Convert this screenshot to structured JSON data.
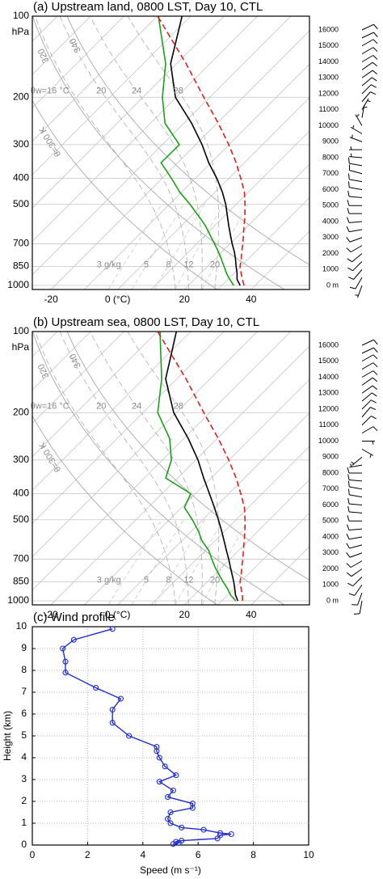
{
  "chart_data": [
    {
      "type": "skewt",
      "title": "(a) Upstream land, 0800 LST, Day 10, CTL",
      "ylabel": "hPa",
      "ylim": [
        1035,
        100
      ],
      "yticks": [
        100,
        200,
        300,
        400,
        500,
        700,
        850,
        1000
      ],
      "xlim": [
        -25.6,
        57.5
      ],
      "xticks": [
        -20,
        {
          "value": 0,
          "label": "0 (°C)"
        },
        20,
        40
      ],
      "pressure": [
        1000,
        950,
        900,
        850,
        800,
        750,
        700,
        650,
        600,
        550,
        500,
        450,
        400,
        350,
        300,
        250,
        200,
        150,
        100
      ],
      "series": [
        {
          "color": "#000000",
          "dashed": false,
          "values": [
            35.5,
            32.8,
            30.9,
            28.6,
            26.3,
            23.7,
            20.6,
            17.5,
            14.2,
            10.7,
            6.9,
            2.2,
            -3.6,
            -10.7,
            -18.1,
            -27.6,
            -40.3,
            -51.8,
            -62.6
          ]
        },
        {
          "color": "#1aa01a",
          "dashed": false,
          "values": [
            33.6,
            30.6,
            27.7,
            25.0,
            22.1,
            18.9,
            15.3,
            11.4,
            7.2,
            2.0,
            -3.8,
            -10.6,
            -17.2,
            -25.0,
            -24.9,
            -35.6,
            -44.2,
            -53.3,
            -69.7
          ]
        },
        {
          "color": "#e02020",
          "dashed": true,
          "values": [
            36.7,
            34.4,
            32.1,
            29.8,
            28.0,
            25.9,
            23.8,
            21.4,
            18.8,
            16.0,
            12.7,
            8.8,
            3.6,
            -2.5,
            -10.1,
            -19.6,
            -31.8,
            -47.2,
            -69.9
          ]
        }
      ],
      "dry_adiabats": [
        {
          "value": 300,
          "label": "θ=300 K"
        },
        320,
        340
      ],
      "moist_adiabats": [
        {
          "value": 16,
          "label": "θw=16 °C"
        },
        20,
        24,
        28
      ],
      "mixing_ratios": [
        {
          "value": 3,
          "label": "3 g/kg"
        },
        5,
        8,
        12,
        20
      ],
      "wind": {
        "ylim": [
          0,
          16000
        ],
        "yticks": [
          {
            "value": 0,
            "label": "0 m"
          },
          1000,
          2000,
          3000,
          4000,
          5000,
          6000,
          7000,
          8000,
          9000,
          10000,
          11000,
          12000,
          13000,
          14000,
          15000,
          16000
        ],
        "heights": [
          0,
          500,
          1000,
          1500,
          2000,
          2500,
          3000,
          3500,
          4000,
          4500,
          5000,
          5500,
          6000,
          6500,
          7000,
          7500,
          8000,
          8500,
          9000,
          9500,
          10000,
          10500,
          11000,
          11500,
          12000,
          12500,
          13000,
          13500,
          14000,
          14500,
          15000,
          15500,
          16000
        ],
        "speed": [
          5,
          10,
          10,
          10,
          10,
          10,
          10,
          10,
          10,
          10,
          10,
          10,
          10,
          10,
          10,
          10,
          5,
          5,
          5,
          5,
          5,
          5,
          5,
          10,
          10,
          10,
          10,
          10,
          10,
          10,
          10,
          10,
          10
        ],
        "direction": [
          200,
          210,
          220,
          225,
          230,
          240,
          250,
          260,
          265,
          270,
          270,
          275,
          280,
          280,
          285,
          280,
          275,
          270,
          290,
          300,
          330,
          10,
          30,
          40,
          45,
          50,
          55,
          55,
          60,
          60,
          60,
          65,
          65
        ]
      }
    },
    {
      "type": "skewt",
      "title": "(b) Upstream sea, 0800 LST, Day 10, CTL",
      "ylabel": "hPa",
      "ylim": [
        1035,
        100
      ],
      "yticks": [
        100,
        200,
        300,
        400,
        500,
        700,
        850,
        1000
      ],
      "xlim": [
        -25.6,
        57.5
      ],
      "xticks": [
        -20,
        {
          "value": 0,
          "label": "0 (°C)"
        },
        20,
        40
      ],
      "pressure": [
        1000,
        950,
        900,
        850,
        800,
        750,
        700,
        650,
        600,
        550,
        500,
        450,
        400,
        350,
        300,
        250,
        200,
        150,
        100
      ],
      "series": [
        {
          "color": "#000000",
          "dashed": false,
          "values": [
            34.8,
            32.3,
            30.2,
            27.9,
            25.3,
            22.5,
            19.6,
            16.3,
            12.8,
            9.0,
            4.7,
            -0.2,
            -5.8,
            -12.2,
            -19.3,
            -28.6,
            -40.8,
            -53.3,
            -64.3
          ]
        },
        {
          "color": "#1aa01a",
          "dashed": false,
          "values": [
            34.2,
            30.8,
            28.0,
            24.7,
            21.4,
            17.9,
            14.5,
            11.0,
            6.2,
            2.0,
            -3.1,
            -9.2,
            -11.4,
            -23.6,
            -27.3,
            -34.2,
            -45.6,
            -54.5,
            -69.2
          ]
        },
        {
          "color": "#e02020",
          "dashed": true,
          "values": [
            36.2,
            34.4,
            32.1,
            29.8,
            28.0,
            25.9,
            23.8,
            21.4,
            18.8,
            16.0,
            12.7,
            8.8,
            3.6,
            -2.5,
            -10.1,
            -19.6,
            -31.8,
            -47.2,
            -69.9
          ]
        }
      ],
      "dry_adiabats": [
        {
          "value": 300,
          "label": "θ=300 K"
        },
        320,
        340
      ],
      "moist_adiabats": [
        {
          "value": 16,
          "label": "θw=16 °C"
        },
        20,
        24,
        28
      ],
      "mixing_ratios": [
        {
          "value": 3,
          "label": "3 g/kg"
        },
        5,
        8,
        12,
        20
      ],
      "wind": {
        "ylim": [
          0,
          16000
        ],
        "yticks": [
          {
            "value": 0,
            "label": "0 m"
          },
          1000,
          2000,
          3000,
          4000,
          5000,
          6000,
          7000,
          8000,
          9000,
          10000,
          11000,
          12000,
          13000,
          14000,
          15000,
          16000
        ],
        "heights": [
          0,
          500,
          1000,
          1500,
          2000,
          2500,
          3000,
          3500,
          4000,
          4500,
          5000,
          5500,
          6000,
          6500,
          7000,
          7500,
          8000,
          8500,
          9000,
          9500,
          10000,
          10500,
          11000,
          11500,
          12000,
          12500,
          13000,
          13500,
          14000,
          14500,
          15000,
          15500,
          16000
        ],
        "speed": [
          10,
          10,
          10,
          10,
          10,
          10,
          10,
          10,
          10,
          10,
          10,
          10,
          10,
          10,
          10,
          10,
          10,
          5,
          5,
          5,
          5,
          10,
          10,
          10,
          10,
          10,
          10,
          10,
          10,
          10,
          10,
          10,
          10
        ],
        "direction": [
          190,
          200,
          215,
          225,
          235,
          240,
          250,
          255,
          260,
          265,
          270,
          275,
          275,
          280,
          280,
          275,
          270,
          260,
          230,
          120,
          90,
          60,
          45,
          40,
          45,
          50,
          55,
          55,
          60,
          60,
          60,
          65,
          65
        ]
      }
    },
    {
      "type": "line",
      "title": "(c) Wind profile",
      "xlabel": "Speed (m s⁻¹)",
      "ylabel": "Height (km)",
      "xlim": [
        0,
        10
      ],
      "xticks": [
        0,
        2,
        4,
        6,
        8,
        10
      ],
      "ylim": [
        0,
        10
      ],
      "yticks": [
        0,
        1,
        2,
        3,
        4,
        5,
        6,
        7,
        8,
        9,
        10
      ],
      "grid": true,
      "color": "#1f2ccc",
      "x": [
        2.9,
        1.5,
        1.1,
        1.2,
        1.2,
        2.3,
        3.2,
        2.9,
        2.9,
        3.5,
        4.5,
        4.5,
        4.6,
        4.8,
        5.2,
        4.6,
        5.1,
        4.9,
        5.8,
        5.8,
        5.0,
        4.9,
        5.0,
        5.4,
        6.2,
        6.8,
        7.2,
        6.8,
        6.7,
        5.4,
        5.2,
        5.3,
        5.1
      ],
      "values": [
        9.9,
        9.4,
        9.0,
        8.4,
        7.9,
        7.2,
        6.7,
        6.2,
        5.6,
        5.0,
        4.5,
        4.3,
        4.0,
        3.6,
        3.2,
        2.9,
        2.5,
        2.2,
        1.9,
        1.7,
        1.5,
        1.2,
        1.0,
        0.8,
        0.7,
        0.55,
        0.5,
        0.45,
        0.3,
        0.2,
        0.15,
        0.1,
        0.05
      ]
    }
  ]
}
